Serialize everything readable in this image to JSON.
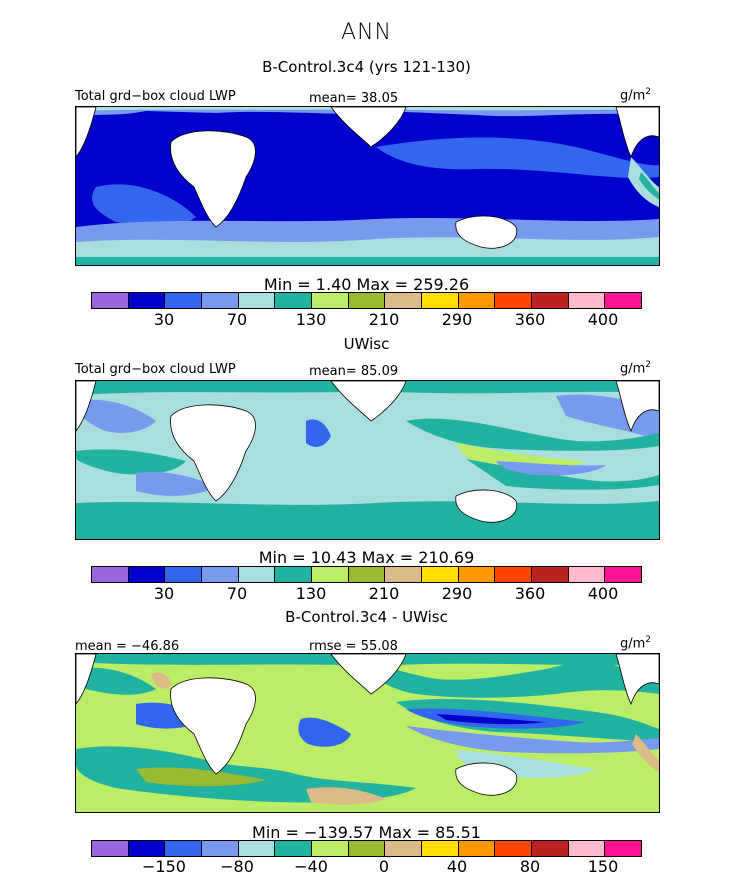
{
  "figure": {
    "title": "ANN",
    "panels": [
      {
        "title": "B-Control.3c4 (yrs 121-130)",
        "left_label": "Total grd−box cloud LWP",
        "center_label": "mean=  38.05",
        "units": "g/m",
        "units_exp": "2",
        "minmax": "Min =    1.40  Max = 259.26",
        "colorbar_ticks": [
          "30",
          "70",
          "130",
          "210",
          "290",
          "360",
          "400"
        ],
        "field_mean": 38.05,
        "field_min": 1.4,
        "field_max": 259.26
      },
      {
        "title": "UWisc",
        "left_label": "Total grd−box cloud LWP",
        "center_label": "mean=  85.09",
        "units": "g/m",
        "units_exp": "2",
        "minmax": "Min =   10.43  Max = 210.69",
        "colorbar_ticks": [
          "30",
          "70",
          "130",
          "210",
          "290",
          "360",
          "400"
        ],
        "field_mean": 85.09,
        "field_min": 10.43,
        "field_max": 210.69
      },
      {
        "title": "B-Control.3c4 - UWisc",
        "left_label": "mean = −46.86",
        "center_label": "rmse =  55.08",
        "units": "g/m",
        "units_exp": "2",
        "minmax": "Min = −139.57  Max =  85.51",
        "colorbar_ticks": [
          "−150",
          "−80",
          "−40",
          "0",
          "40",
          "80",
          "150"
        ],
        "field_mean": -46.86,
        "field_rmse": 55.08,
        "field_min": -139.57,
        "field_max": 85.51
      }
    ],
    "colorbar_colors": [
      "#9966dd",
      "#0000cc",
      "#3366ee",
      "#7799ee",
      "#aadddd",
      "#22b2a0",
      "#bbee66",
      "#99bb33",
      "#ddbb88",
      "#ffdd00",
      "#ff9900",
      "#ff4400",
      "#bb2222",
      "#ffbbcc",
      "#ff1493"
    ]
  }
}
